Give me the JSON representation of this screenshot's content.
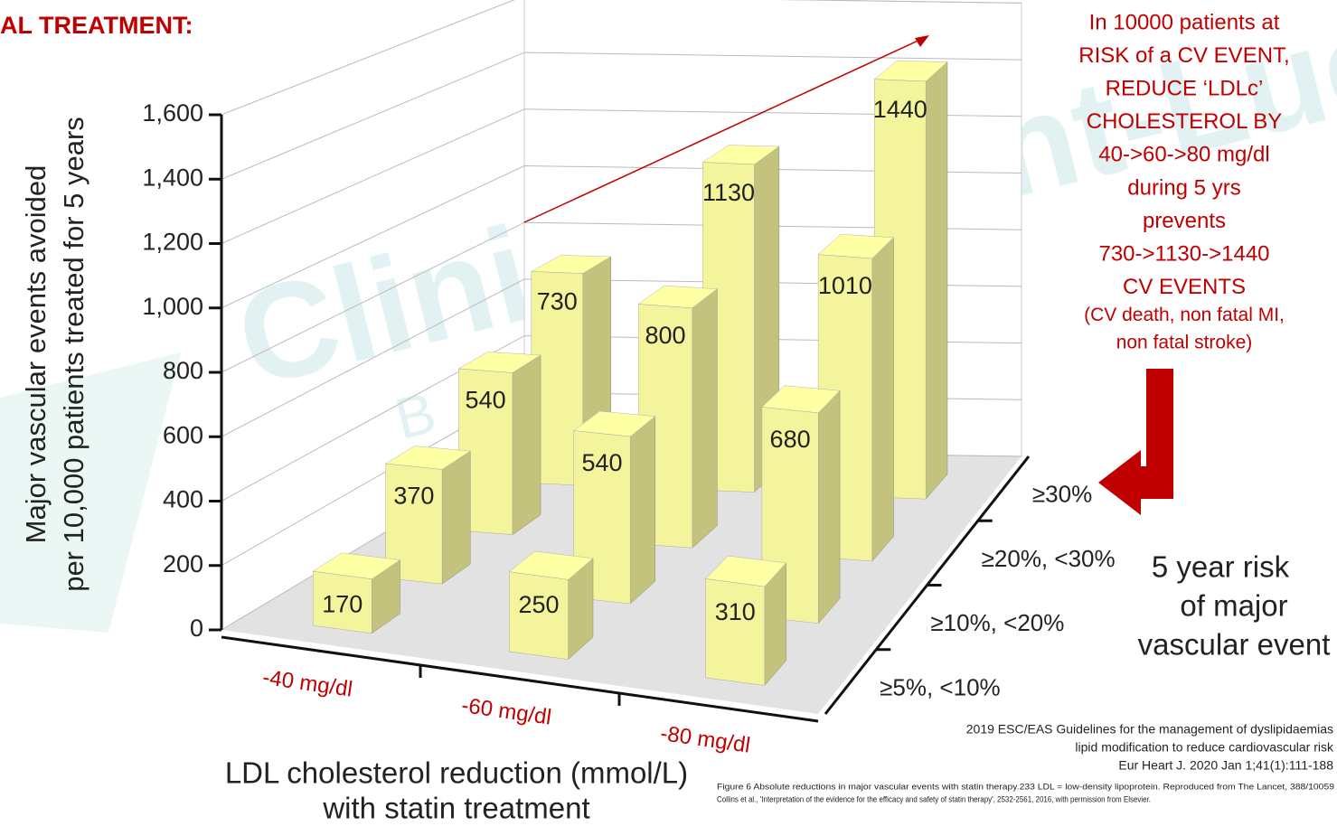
{
  "chart_data": {
    "type": "bar3d",
    "title": "AL TREATMENT:",
    "y_label": [
      "Major vascular events avoided",
      "per 10,000 patients treated for 5 years"
    ],
    "x_label": [
      "LDL cholesterol reduction (mmol/L)",
      "with statin treatment"
    ],
    "z_label": [
      "5 year risk",
      "of major",
      "vascular event"
    ],
    "categories": [
      "-40 mg/dl",
      "-60 mg/dl",
      "-80 mg/dl"
    ],
    "series": [
      {
        "name": "≥5%, <10%",
        "color": "#f4f49c",
        "values": [
          170,
          250,
          310
        ]
      },
      {
        "name": "≥10%, <20%",
        "color": "#f4f49c",
        "values": [
          370,
          540,
          680
        ]
      },
      {
        "name": "≥20%, <30%",
        "color": "#f4f49c",
        "values": [
          540,
          800,
          1010
        ]
      },
      {
        "name": "≥30%",
        "color": "#f4f49c",
        "values": [
          730,
          1130,
          1440
        ]
      }
    ],
    "ylim": [
      0,
      1600
    ],
    "yticks": [
      0,
      200,
      400,
      600,
      800,
      {
        "value": 1000,
        "label": "1,000"
      },
      {
        "value": 1200,
        "label": "1,200"
      },
      {
        "value": 1400,
        "label": "1,400"
      },
      {
        "value": 1600,
        "label": "1,600"
      }
    ],
    "grid": true,
    "annotation": [
      "In 10000 patients at",
      "RISK of a CV EVENT,",
      "REDUCE ‘LDLc’",
      "CHOLESTEROL BY",
      "40->60->80 mg/dl",
      "during 5 yrs",
      "prevents",
      "730->1130->1440",
      "CV EVENTS",
      "(CV death,  non fatal MI,",
      "non fatal stroke)"
    ],
    "watermark": [
      "Clinique Saint-Luc",
      "Bouge"
    ],
    "source": [
      "2019 ESC/EAS Guidelines for the management of dyslipidaemias",
      "lipid modification to reduce cardiovascular risk",
      "Eur Heart J. 2020 Jan 1;41(1):111-188"
    ],
    "caption": [
      "Figure 6 Absolute reductions in major vascular events with statin therapy.233 LDL = low-density lipoprotein. Reproduced from The Lancet, 388/10059",
      "Collins et al., 'Interpretation of the evidence for the efficacy and safety of statin therapy', 2532-2561, 2016, with permission from Elsevier."
    ]
  }
}
